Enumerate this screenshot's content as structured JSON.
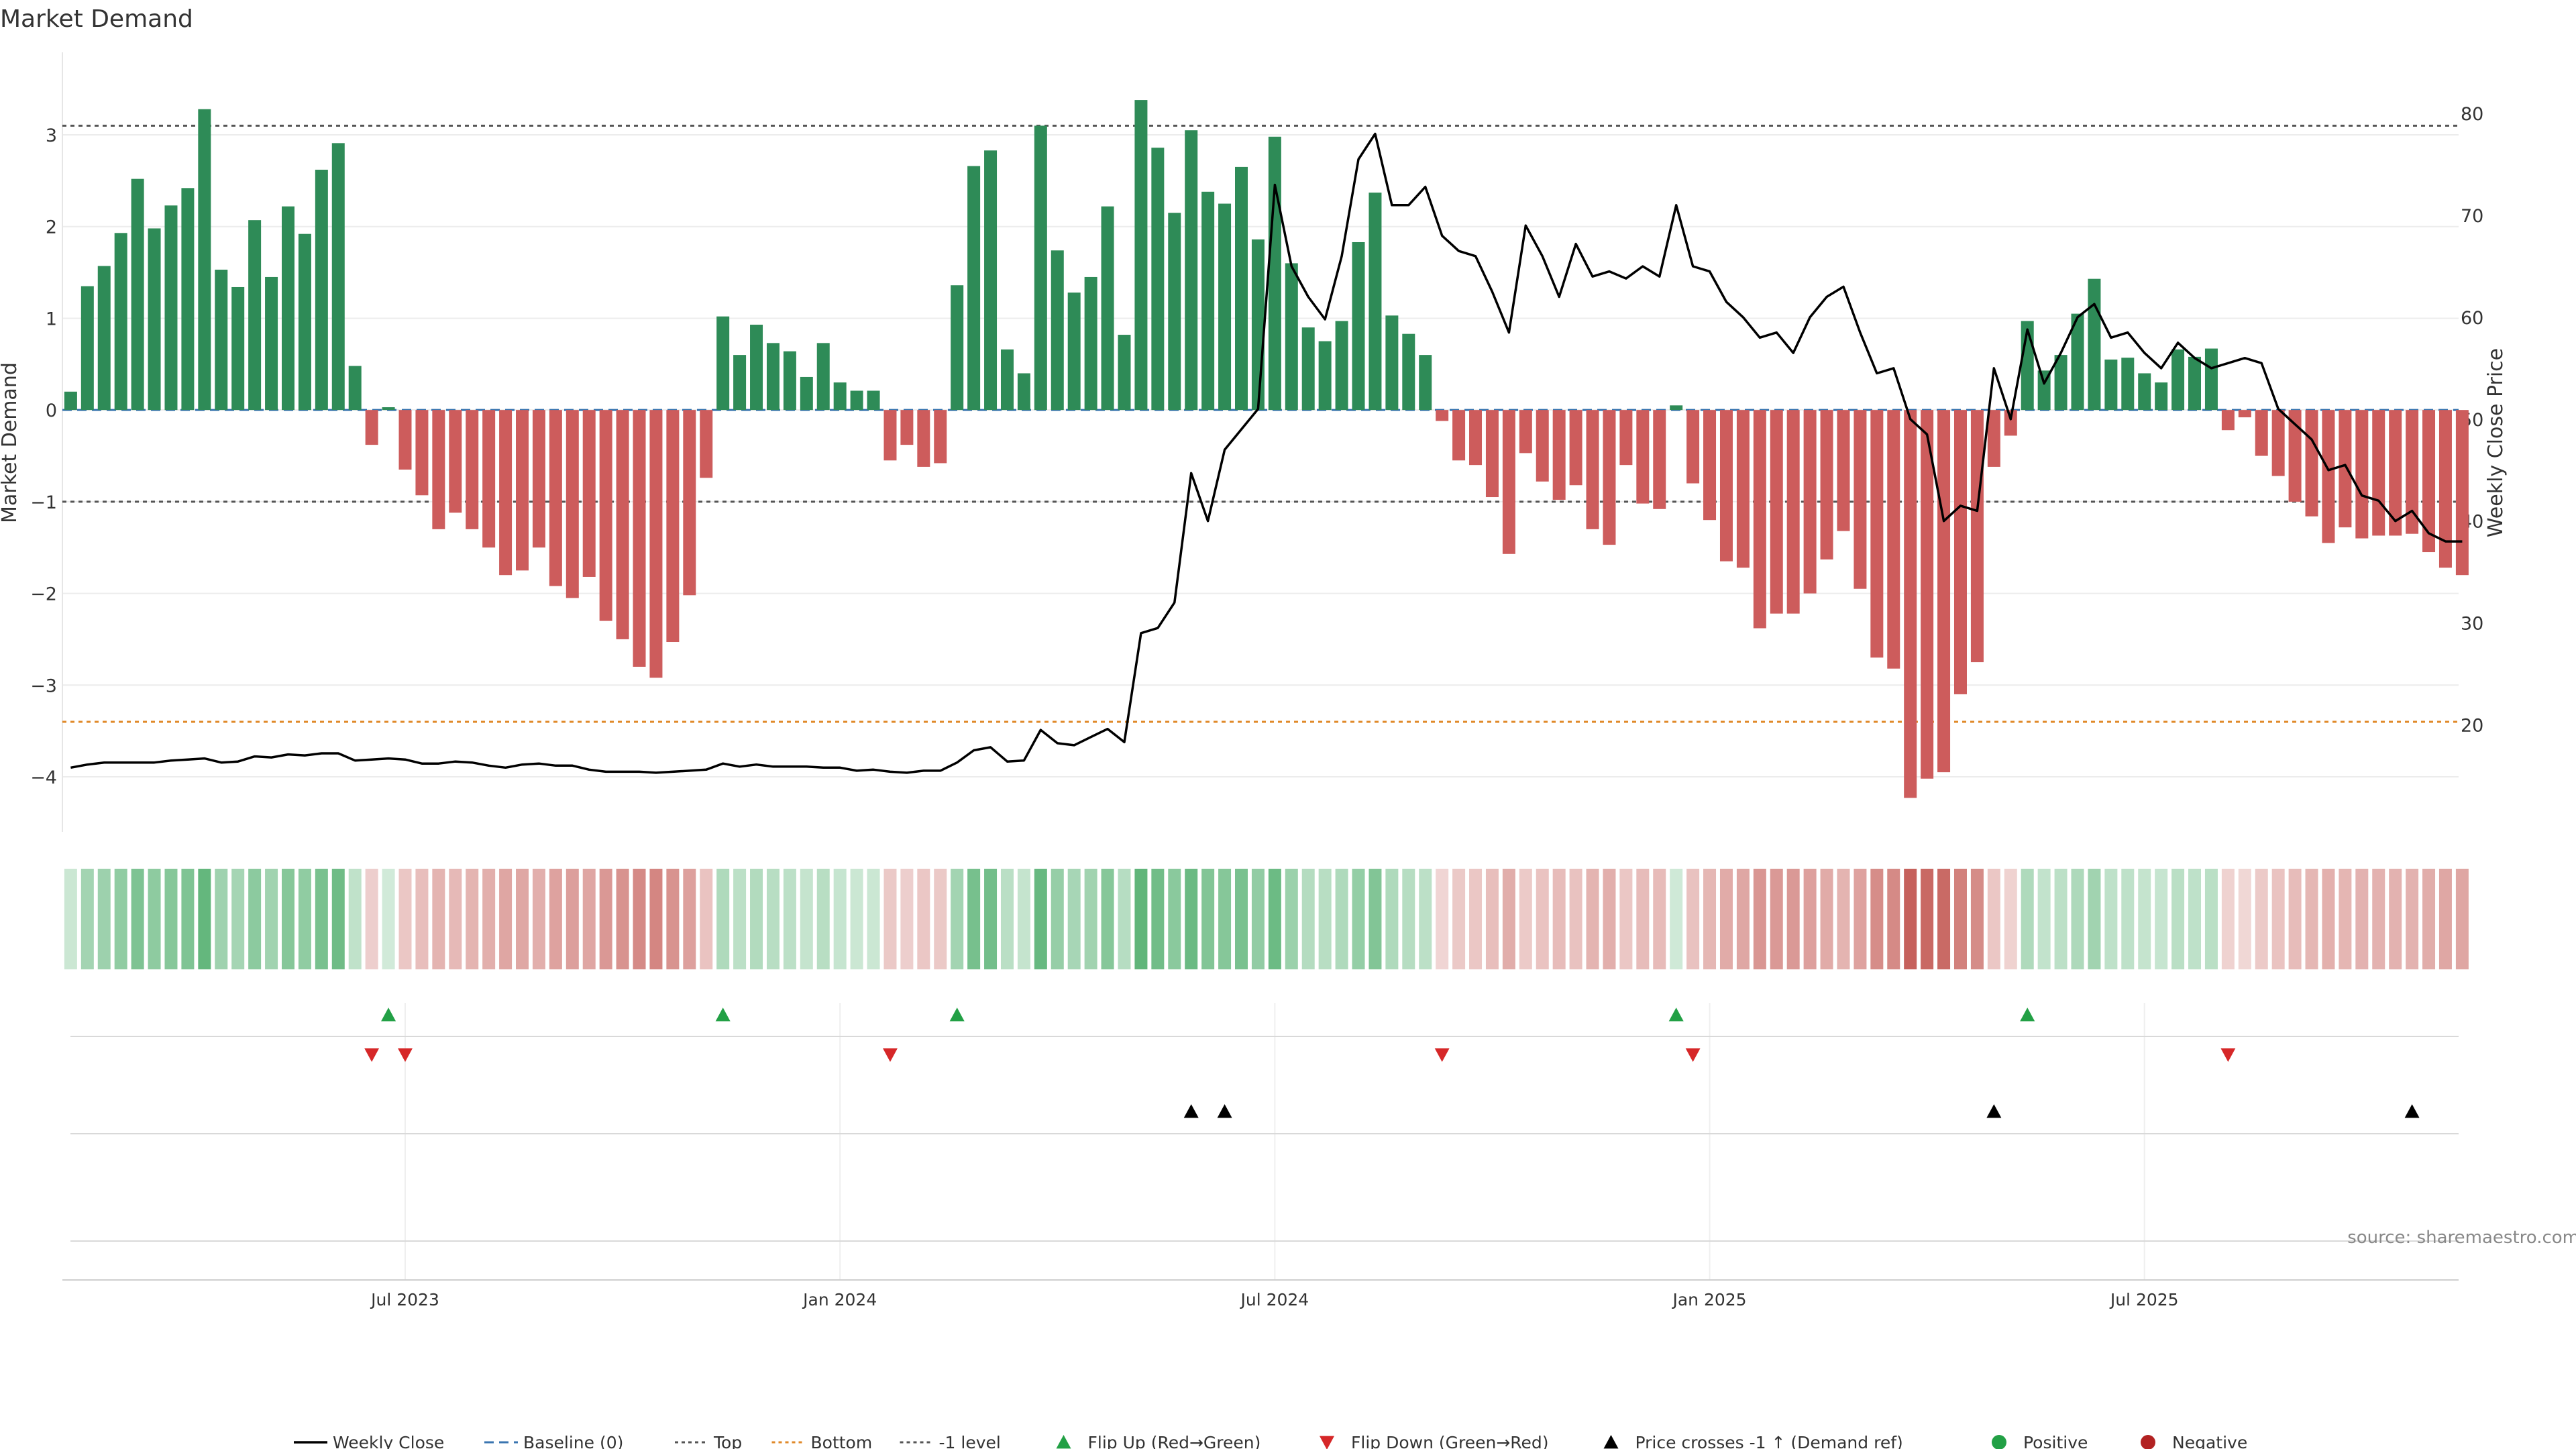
{
  "chart_data": {
    "type": "bar",
    "title": "Market Demand",
    "ylabel_left": "Market Demand",
    "ylabel_right": "Weekly Close Price",
    "ylim_left": [
      -4.6,
      3.9
    ],
    "ylim_right": [
      9.5,
      86
    ],
    "yticks_left": [
      3,
      2,
      1,
      0,
      -1,
      -2,
      -3,
      -4
    ],
    "yticks_left_labels": [
      "3",
      "2",
      "1",
      "0",
      "−1",
      "−2",
      "−3",
      "−4"
    ],
    "yticks_right": [
      80,
      70,
      60,
      50,
      40,
      30,
      20
    ],
    "yticks_right_labels": [
      "80",
      "70",
      "60",
      "50",
      "40",
      "30",
      "20"
    ],
    "x_range_weeks": [
      0,
      144
    ],
    "x_ticks": [
      {
        "label": "Jul 2023",
        "week": 20
      },
      {
        "label": "Jan 2024",
        "week": 46
      },
      {
        "label": "Jul 2024",
        "week": 72
      },
      {
        "label": "Jan 2025",
        "week": 98
      },
      {
        "label": "Jul 2025",
        "week": 124
      }
    ],
    "levels": {
      "top": 3.1,
      "bottom": -3.4,
      "minus_one": -1,
      "baseline": 0
    },
    "demand": [
      0.2,
      1.35,
      1.57,
      1.93,
      2.52,
      1.98,
      2.23,
      2.42,
      3.28,
      1.53,
      1.34,
      2.07,
      1.45,
      2.22,
      1.92,
      2.62,
      2.91,
      0.48,
      -0.38,
      0.03,
      -0.65,
      -0.93,
      -1.3,
      -1.12,
      -1.3,
      -1.5,
      -1.8,
      -1.75,
      -1.5,
      -1.92,
      -2.05,
      -1.82,
      -2.3,
      -2.5,
      -2.8,
      -2.92,
      -2.53,
      -2.02,
      -0.74,
      1.02,
      0.6,
      0.93,
      0.73,
      0.64,
      0.36,
      0.73,
      0.3,
      0.21,
      0.21,
      -0.55,
      -0.38,
      -0.62,
      -0.58,
      1.36,
      2.66,
      2.83,
      0.66,
      0.4,
      3.1,
      1.74,
      1.28,
      1.45,
      2.22,
      0.82,
      3.38,
      2.86,
      2.15,
      3.05,
      2.38,
      2.25,
      2.65,
      1.86,
      2.98,
      1.6,
      0.9,
      0.75,
      0.97,
      1.83,
      2.37,
      1.03,
      0.83,
      0.6,
      -0.12,
      -0.55,
      -0.6,
      -0.95,
      -1.57,
      -0.47,
      -0.78,
      -0.98,
      -0.82,
      -1.3,
      -1.47,
      -0.6,
      -1.02,
      -1.08,
      0.05,
      -0.8,
      -1.2,
      -1.65,
      -1.72,
      -2.38,
      -2.22,
      -2.22,
      -2.0,
      -1.63,
      -1.32,
      -1.95,
      -2.7,
      -2.82,
      -4.23,
      -4.02,
      -3.95,
      -3.1,
      -2.75,
      -0.62,
      -0.28,
      0.97,
      0.43,
      0.6,
      1.05,
      1.43,
      0.55,
      0.57,
      0.4,
      0.3,
      0.66,
      0.58,
      0.67,
      -0.22,
      -0.08,
      -0.5,
      -0.72,
      -1.0,
      -1.16,
      -1.45,
      -1.28,
      -1.4,
      -1.37,
      -1.37,
      -1.35,
      -1.55,
      -1.72,
      -1.8
    ],
    "close": [
      15.8,
      16.1,
      16.3,
      16.3,
      16.3,
      16.3,
      16.5,
      16.6,
      16.7,
      16.3,
      16.4,
      16.9,
      16.8,
      17.1,
      17.0,
      17.2,
      17.2,
      16.5,
      16.6,
      16.7,
      16.6,
      16.2,
      16.2,
      16.4,
      16.3,
      16.0,
      15.8,
      16.1,
      16.2,
      16.0,
      16.0,
      15.6,
      15.4,
      15.4,
      15.4,
      15.3,
      15.4,
      15.5,
      15.6,
      16.2,
      15.9,
      16.1,
      15.9,
      15.9,
      15.9,
      15.8,
      15.8,
      15.5,
      15.6,
      15.4,
      15.3,
      15.5,
      15.5,
      16.3,
      17.5,
      17.8,
      16.4,
      16.5,
      19.5,
      18.2,
      18.0,
      18.8,
      19.6,
      18.3,
      29.0,
      29.5,
      32.0,
      44.7,
      40.0,
      47.0,
      49.0,
      51.0,
      73.0,
      65.0,
      62.0,
      59.8,
      66.0,
      75.5,
      78.0,
      71.0,
      71.0,
      72.8,
      68.0,
      66.5,
      66.0,
      62.5,
      58.5,
      69.0,
      66.0,
      62.0,
      67.2,
      64.0,
      64.5,
      63.8,
      65.0,
      64.0,
      71.0,
      65.0,
      64.5,
      61.5,
      60.0,
      58.0,
      58.5,
      56.5,
      60.0,
      62.0,
      63.0,
      58.5,
      54.5,
      55.0,
      50.0,
      48.5,
      40.0,
      41.5,
      41.0,
      55.0,
      50.0,
      58.8,
      53.5,
      56.5,
      60.0,
      61.3,
      58.0,
      58.5,
      56.5,
      55.0,
      57.5,
      56.0,
      55.0,
      55.5,
      56.0,
      55.5,
      51.0,
      49.5,
      48.0,
      45.0,
      45.5,
      42.5,
      42.0,
      40.0,
      41.0,
      38.8,
      38.0,
      38.0
    ],
    "flip_up_weeks": [
      19,
      39,
      53,
      96,
      117
    ],
    "flip_down_weeks": [
      18,
      20,
      49,
      82,
      97,
      129
    ],
    "price_cross_weeks": [
      67,
      69,
      115,
      140
    ],
    "legend_position": "bottom-center",
    "legend": [
      {
        "label": "Weekly Close",
        "kind": "line",
        "color": "#000000"
      },
      {
        "label": "Baseline (0)",
        "kind": "dashed",
        "color": "#3a75b0"
      },
      {
        "label": "Top",
        "kind": "dotted",
        "color": "#555555"
      },
      {
        "label": "Bottom",
        "kind": "dotted",
        "color": "#e08a2a"
      },
      {
        "label": "-1 level",
        "kind": "dotted",
        "color": "#555555"
      },
      {
        "label": "Flip Up (Red→Green)",
        "kind": "tri-up",
        "color": "#22a045"
      },
      {
        "label": "Flip Down (Green→Red)",
        "kind": "tri-down",
        "color": "#d62728"
      },
      {
        "label": "Price crosses -1 ↑ (Demand ref)",
        "kind": "tri-up",
        "color": "#000000"
      },
      {
        "label": "Positive",
        "kind": "dot",
        "color": "#22a045"
      },
      {
        "label": "Negative",
        "kind": "dot",
        "color": "#b22222"
      }
    ],
    "source": "source: sharemaestro.com"
  },
  "colors": {
    "positive": "#2e8b57",
    "negative": "#cd5c5c",
    "heat_positive": "#2e9e50",
    "heat_negative": "#c0504a",
    "flip_up": "#22a045",
    "flip_down": "#d62728",
    "cross": "#000000",
    "baseline": "#3a75b0",
    "level": "#555555",
    "bottom": "#e08a2a"
  }
}
